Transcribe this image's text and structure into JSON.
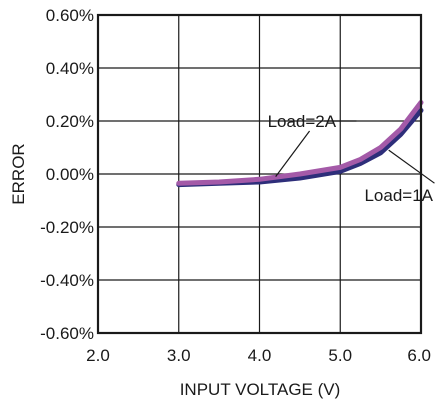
{
  "chart_data": {
    "type": "line",
    "title": "",
    "xlabel": "INPUT VOLTAGE (V)",
    "ylabel": "ERROR",
    "xlim": [
      2.0,
      6.0
    ],
    "ylim": [
      -0.6,
      0.6
    ],
    "x_ticks": [
      2.0,
      3.0,
      4.0,
      5.0,
      6.0
    ],
    "x_tick_labels": [
      "2.0",
      "3.0",
      "4.0",
      "5.0",
      "6.0"
    ],
    "y_ticks": [
      0.6,
      0.4,
      0.2,
      0.0,
      -0.2,
      -0.4,
      -0.6
    ],
    "y_tick_labels": [
      "0.60%",
      "0.40%",
      "0.20%",
      "0.00%",
      "-0.20%",
      "-0.40%",
      "-0.60%"
    ],
    "grid": true,
    "legend": "none",
    "series": [
      {
        "name": "Load=1A",
        "color": "#2e2e7a",
        "x": [
          3.0,
          3.5,
          4.0,
          4.5,
          5.0,
          5.25,
          5.5,
          5.75,
          6.0
        ],
        "y": [
          -0.04,
          -0.035,
          -0.03,
          -0.015,
          0.01,
          0.04,
          0.08,
          0.15,
          0.24
        ]
      },
      {
        "name": "Load=2A",
        "color": "#a45aa8",
        "x": [
          3.0,
          3.5,
          4.0,
          4.5,
          5.0,
          5.25,
          5.5,
          5.75,
          6.0
        ],
        "y": [
          -0.035,
          -0.03,
          -0.02,
          0.0,
          0.025,
          0.055,
          0.1,
          0.17,
          0.27
        ]
      }
    ],
    "annotations": [
      {
        "text": "Load=2A",
        "series": 1,
        "at_x": 4.1,
        "at_y": 0.2,
        "point_x": 4.2,
        "point_y": -0.01
      },
      {
        "text": "Load=1A",
        "series": 0,
        "at_x": 5.3,
        "at_y": -0.08,
        "point_x": 5.6,
        "point_y": 0.09
      }
    ]
  }
}
